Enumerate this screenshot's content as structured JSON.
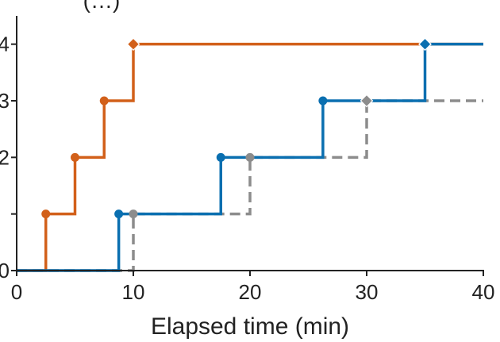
{
  "chart_data": {
    "type": "line",
    "step": "post",
    "xlabel": "Elapsed time (min)",
    "ylabel": "",
    "ylabel_partial": "(…)",
    "xlim": [
      0,
      40
    ],
    "ylim": [
      0,
      4.5
    ],
    "x_ticks": [
      0,
      10,
      20,
      30,
      40
    ],
    "x_tick_labels": [
      "0",
      "10",
      "20",
      "30",
      "40"
    ],
    "y_ticks": [
      0,
      1,
      2,
      3,
      4
    ],
    "y_tick_labels": [
      "0",
      "",
      "2",
      "3",
      "4"
    ],
    "grid": false,
    "series": [
      {
        "color": "#d2601a",
        "dash": false,
        "x": [
          0,
          2.5,
          5,
          7.5,
          10,
          40
        ],
        "y": [
          0,
          1,
          2,
          3,
          4,
          4
        ],
        "markers": [
          {
            "x": 2.5,
            "y": 1,
            "shape": "circle"
          },
          {
            "x": 5,
            "y": 2,
            "shape": "circle"
          },
          {
            "x": 7.5,
            "y": 3,
            "shape": "circle"
          },
          {
            "x": 10,
            "y": 4,
            "shape": "diamond"
          },
          {
            "x": 35,
            "y": 4,
            "shape": "diamond"
          }
        ]
      },
      {
        "color": "#8c8c8c",
        "dash": true,
        "x": [
          0,
          10,
          20,
          30,
          40
        ],
        "y": [
          0,
          1,
          2,
          3,
          3
        ],
        "markers": [
          {
            "x": 10,
            "y": 1,
            "shape": "circle"
          },
          {
            "x": 20,
            "y": 2,
            "shape": "circle"
          },
          {
            "x": 30,
            "y": 3,
            "shape": "diamond"
          }
        ]
      },
      {
        "color": "#0a6fb0",
        "dash": false,
        "x": [
          0,
          8.75,
          17.5,
          26.25,
          35,
          40
        ],
        "y": [
          0,
          1,
          2,
          3,
          4,
          4
        ],
        "markers": [
          {
            "x": 8.75,
            "y": 1,
            "shape": "circle"
          },
          {
            "x": 17.5,
            "y": 2,
            "shape": "circle"
          },
          {
            "x": 26.25,
            "y": 3,
            "shape": "circle"
          },
          {
            "x": 35,
            "y": 4,
            "shape": "diamond"
          }
        ]
      }
    ]
  }
}
